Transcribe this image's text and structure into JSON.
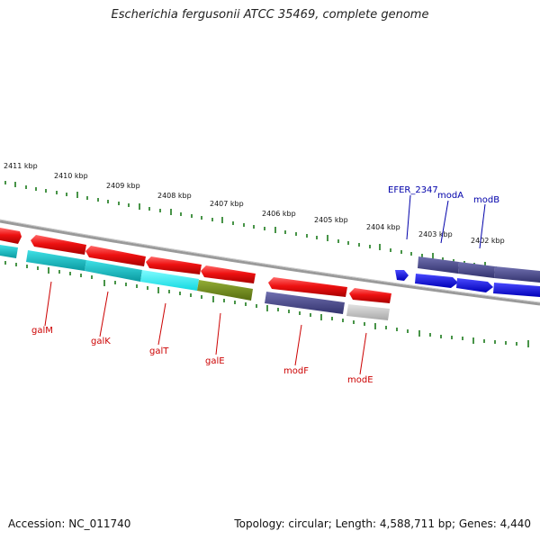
{
  "header": {
    "title": "Escherichia fergusonii ATCC 35469, complete genome"
  },
  "footer": {
    "accession": "Accession: NC_011740",
    "stats": "Topology: circular; Length: 4,588,711 bp; Genes: 4,440"
  },
  "scale": {
    "kbp_labels": [
      "2411 kbp",
      "2410 kbp",
      "2409 kbp",
      "2408 kbp",
      "2407 kbp",
      "2406 kbp",
      "2405 kbp",
      "2404 kbp",
      "2403 kbp",
      "2402 kbp"
    ]
  },
  "colors": {
    "backbone": "#8c8c8c",
    "red": "#e01010",
    "cyan": "#11c4c8",
    "olive": "#6e8a1a",
    "slate": "#4a4a8a",
    "blue": "#1212e6",
    "grey": "#bdbdbd",
    "tick_green": "#1a7a1a",
    "label_red": "#cc0000",
    "label_blue": "#0000aa"
  },
  "genes": {
    "bottom_labels": [
      "galM",
      "galK",
      "galT",
      "galE",
      "modF",
      "modE"
    ],
    "top_labels": [
      "EFER_2347",
      "modA",
      "modB"
    ]
  }
}
